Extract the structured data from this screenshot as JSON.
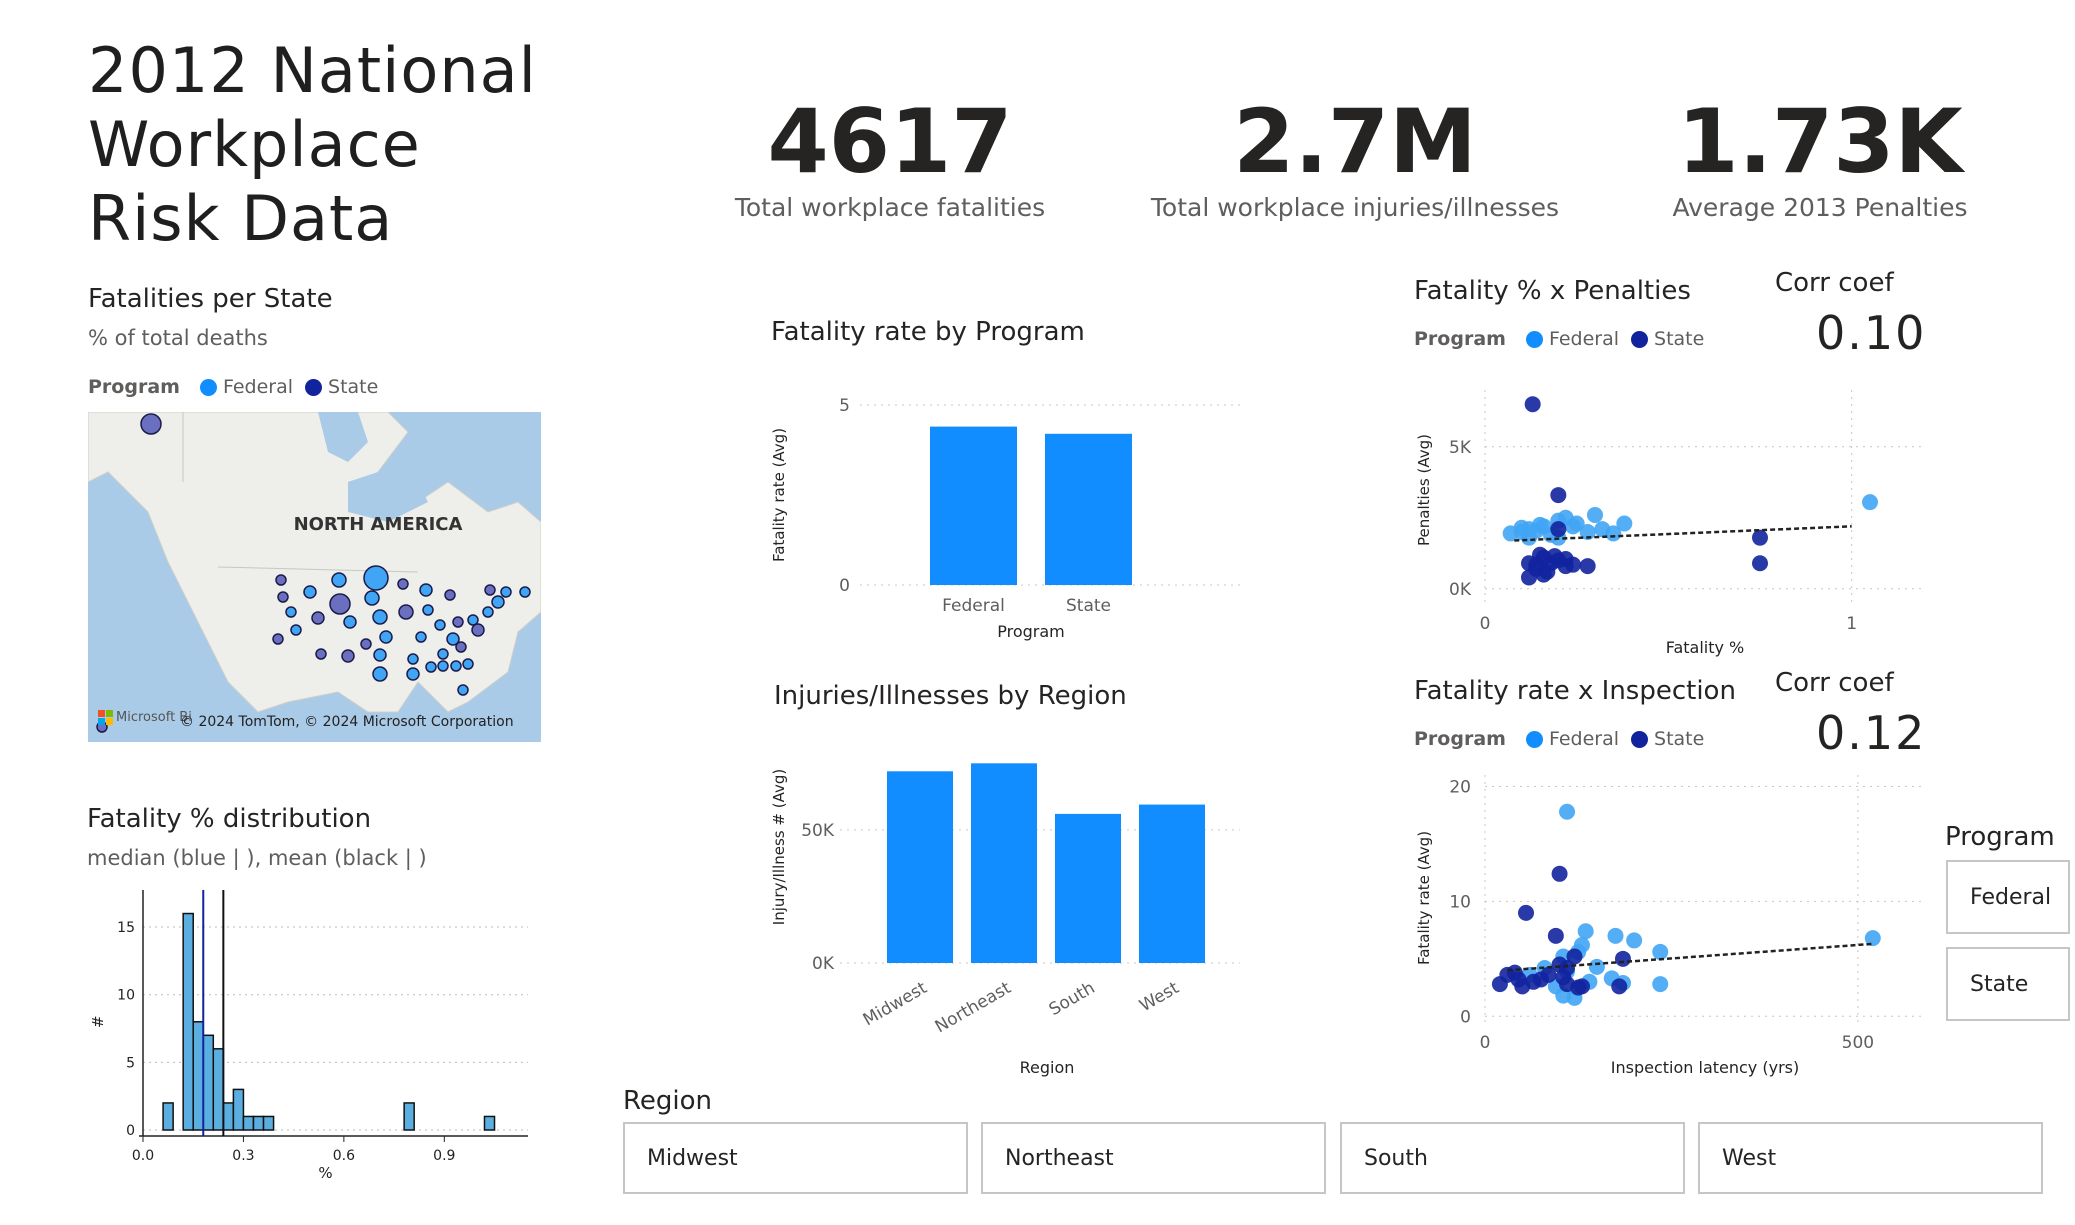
{
  "title_lines": [
    "2012 National",
    "Workplace",
    "Risk Data"
  ],
  "kpis": [
    {
      "value": "4617",
      "label": "Total workplace fatalities"
    },
    {
      "value": "2.7M",
      "label": "Total workplace injuries/illnesses"
    },
    {
      "value": "1.73K",
      "label": "Average 2013 Penalties"
    }
  ],
  "colors": {
    "federal": "#118dff",
    "state": "#12239e",
    "federal_light": "#41a5f5",
    "bar": "#118dff",
    "hist": "#5aaee0"
  },
  "legend": {
    "title": "Program",
    "federal": "Federal",
    "state": "State"
  },
  "map": {
    "title": "Fatalities per State",
    "subtitle": "% of total deaths",
    "region_label": "NORTH AMERICA",
    "attribution": "© 2024 TomTom, © 2024 Microsoft Corporation",
    "logo_text": "Microsoft Bi"
  },
  "histogram": {
    "title": "Fatality % distribution",
    "subtitle": "median (blue | ), mean (black | )"
  },
  "slicers": {
    "region_title": "Region",
    "regions": [
      "Midwest",
      "Northeast",
      "South",
      "West"
    ],
    "program_title": "Program",
    "programs": [
      "Federal",
      "State"
    ]
  },
  "corr": [
    {
      "label": "Corr coef",
      "value": "0.10"
    },
    {
      "label": "Corr coef",
      "value": "0.12"
    }
  ],
  "chart_data": [
    {
      "id": "fatality_rate_by_program",
      "type": "bar",
      "title": "Fatality rate by Program",
      "xlabel": "Program",
      "ylabel": "Fatality rate (Avg)",
      "categories": [
        "Federal",
        "State"
      ],
      "values": [
        4.4,
        4.2
      ],
      "ylim": [
        0,
        5
      ],
      "yticks": [
        "0",
        "5"
      ],
      "grid": true
    },
    {
      "id": "injuries_by_region",
      "type": "bar",
      "title": "Injuries/Illnesses by Region",
      "xlabel": "Region",
      "ylabel": "Injury/Illness # (Avg)",
      "categories": [
        "Midwest",
        "Northeast",
        "South",
        "West"
      ],
      "values": [
        72000,
        75000,
        56000,
        59500
      ],
      "ylim": [
        0,
        80000
      ],
      "yticks": [
        {
          "v": 0,
          "label": "0K"
        },
        {
          "v": 50000,
          "label": "50K"
        }
      ],
      "grid": true
    },
    {
      "id": "fatality_vs_penalties",
      "type": "scatter",
      "title": "Fatality % x Penalties",
      "xlabel": "Fatality %",
      "ylabel": "Penalties (Avg)",
      "xlim": [
        0,
        1.2
      ],
      "ylim": [
        -500,
        7000
      ],
      "xticks": [
        {
          "v": 0,
          "label": "0"
        },
        {
          "v": 1,
          "label": "1"
        }
      ],
      "yticks": [
        {
          "v": 0,
          "label": "0K"
        },
        {
          "v": 5000,
          "label": "5K"
        }
      ],
      "trend": [
        [
          0.08,
          1700
        ],
        [
          1.0,
          2200
        ]
      ],
      "series": [
        {
          "name": "Federal",
          "points": [
            [
              0.07,
              1950
            ],
            [
              0.1,
              2000
            ],
            [
              0.12,
              2100
            ],
            [
              0.14,
              2050
            ],
            [
              0.16,
              2200
            ],
            [
              0.18,
              1900
            ],
            [
              0.2,
              2400
            ],
            [
              0.22,
              2500
            ],
            [
              0.25,
              2300
            ],
            [
              0.28,
              2000
            ],
            [
              0.3,
              2600
            ],
            [
              0.32,
              2100
            ],
            [
              0.35,
              1950
            ],
            [
              0.38,
              2300
            ],
            [
              0.12,
              1800
            ],
            [
              0.15,
              2250
            ],
            [
              0.2,
              1800
            ],
            [
              0.24,
              2200
            ],
            [
              1.05,
              3050
            ],
            [
              0.1,
              2150
            ]
          ]
        },
        {
          "name": "State",
          "points": [
            [
              0.13,
              6500
            ],
            [
              0.2,
              3300
            ],
            [
              0.2,
              2100
            ],
            [
              0.12,
              900
            ],
            [
              0.14,
              850
            ],
            [
              0.16,
              1100
            ],
            [
              0.18,
              900
            ],
            [
              0.2,
              1000
            ],
            [
              0.22,
              1050
            ],
            [
              0.24,
              850
            ],
            [
              0.28,
              800
            ],
            [
              0.17,
              600
            ],
            [
              0.14,
              700
            ],
            [
              0.15,
              1200
            ],
            [
              0.19,
              1150
            ],
            [
              0.22,
              800
            ],
            [
              0.75,
              1800
            ],
            [
              0.75,
              900
            ],
            [
              0.12,
              400
            ],
            [
              0.16,
              500
            ]
          ]
        }
      ]
    },
    {
      "id": "fatality_rate_vs_inspection",
      "type": "scatter",
      "title": "Fatality rate x Inspection",
      "xlabel": "Inspection latency (yrs)",
      "ylabel": "Fatality rate (Avg)",
      "xlim": [
        0,
        590
      ],
      "ylim": [
        -0.5,
        21
      ],
      "xticks": [
        {
          "v": 0,
          "label": "0"
        },
        {
          "v": 500,
          "label": "500"
        }
      ],
      "yticks": [
        {
          "v": 0,
          "label": "0"
        },
        {
          "v": 10,
          "label": "10"
        },
        {
          "v": 20,
          "label": "20"
        }
      ],
      "trend": [
        [
          30,
          4
        ],
        [
          520,
          6.3
        ]
      ],
      "series": [
        {
          "name": "Federal",
          "points": [
            [
              110,
              17.8
            ],
            [
              135,
              7.4
            ],
            [
              175,
              7.0
            ],
            [
              200,
              6.6
            ],
            [
              235,
              5.6
            ],
            [
              130,
              6.2
            ],
            [
              105,
              5.2
            ],
            [
              125,
              5.6
            ],
            [
              150,
              4.3
            ],
            [
              170,
              3.3
            ],
            [
              235,
              2.8
            ],
            [
              120,
              1.6
            ],
            [
              105,
              1.8
            ],
            [
              95,
              2.6
            ],
            [
              140,
              3.0
            ],
            [
              520,
              6.8
            ],
            [
              80,
              4.2
            ],
            [
              60,
              3.6
            ],
            [
              185,
              2.9
            ],
            [
              110,
              3.9
            ]
          ]
        },
        {
          "name": "State",
          "points": [
            [
              100,
              12.4
            ],
            [
              55,
              9.0
            ],
            [
              95,
              7.0
            ],
            [
              100,
              4.5
            ],
            [
              120,
              5.2
            ],
            [
              110,
              4.2
            ],
            [
              85,
              3.6
            ],
            [
              75,
              3.2
            ],
            [
              40,
              3.8
            ],
            [
              30,
              3.6
            ],
            [
              50,
              2.6
            ],
            [
              20,
              2.8
            ],
            [
              105,
              3.4
            ],
            [
              130,
              2.6
            ],
            [
              185,
              5.0
            ],
            [
              180,
              2.6
            ],
            [
              65,
              3.0
            ],
            [
              45,
              3.2
            ],
            [
              110,
              2.8
            ],
            [
              125,
              2.5
            ]
          ]
        }
      ]
    },
    {
      "id": "fatality_pct_distribution",
      "type": "bar",
      "title": "Fatality % distribution",
      "xlabel": "%",
      "ylabel": "#",
      "bin_width": 0.03,
      "bin_starts": [
        0.06,
        0.09,
        0.12,
        0.15,
        0.18,
        0.21,
        0.24,
        0.27,
        0.3,
        0.33,
        0.36,
        0.39,
        0.42,
        0.45,
        0.48,
        0.51,
        0.54,
        0.57,
        0.6,
        0.63,
        0.66,
        0.69,
        0.72,
        0.75,
        0.78,
        0.81,
        0.84,
        0.87,
        0.9,
        0.93,
        0.96,
        0.99,
        1.02,
        1.05
      ],
      "values": [
        2,
        0,
        16,
        8,
        7,
        6,
        2,
        3,
        1,
        1,
        1,
        0,
        0,
        0,
        0,
        0,
        0,
        0,
        0,
        0,
        0,
        0,
        0,
        0,
        2,
        0,
        0,
        0,
        0,
        0,
        0,
        0,
        1,
        0
      ],
      "xlim": [
        0,
        1.15
      ],
      "ylim": [
        0,
        17
      ],
      "xticks": [
        {
          "v": 0,
          "label": "0.0"
        },
        {
          "v": 0.3,
          "label": "0.3"
        },
        {
          "v": 0.6,
          "label": "0.6"
        },
        {
          "v": 0.9,
          "label": "0.9"
        }
      ],
      "yticks": [
        {
          "v": 0,
          "label": "0"
        },
        {
          "v": 5,
          "label": "5"
        },
        {
          "v": 10,
          "label": "10"
        },
        {
          "v": 15,
          "label": "15"
        }
      ],
      "median": 0.18,
      "mean": 0.24
    }
  ]
}
